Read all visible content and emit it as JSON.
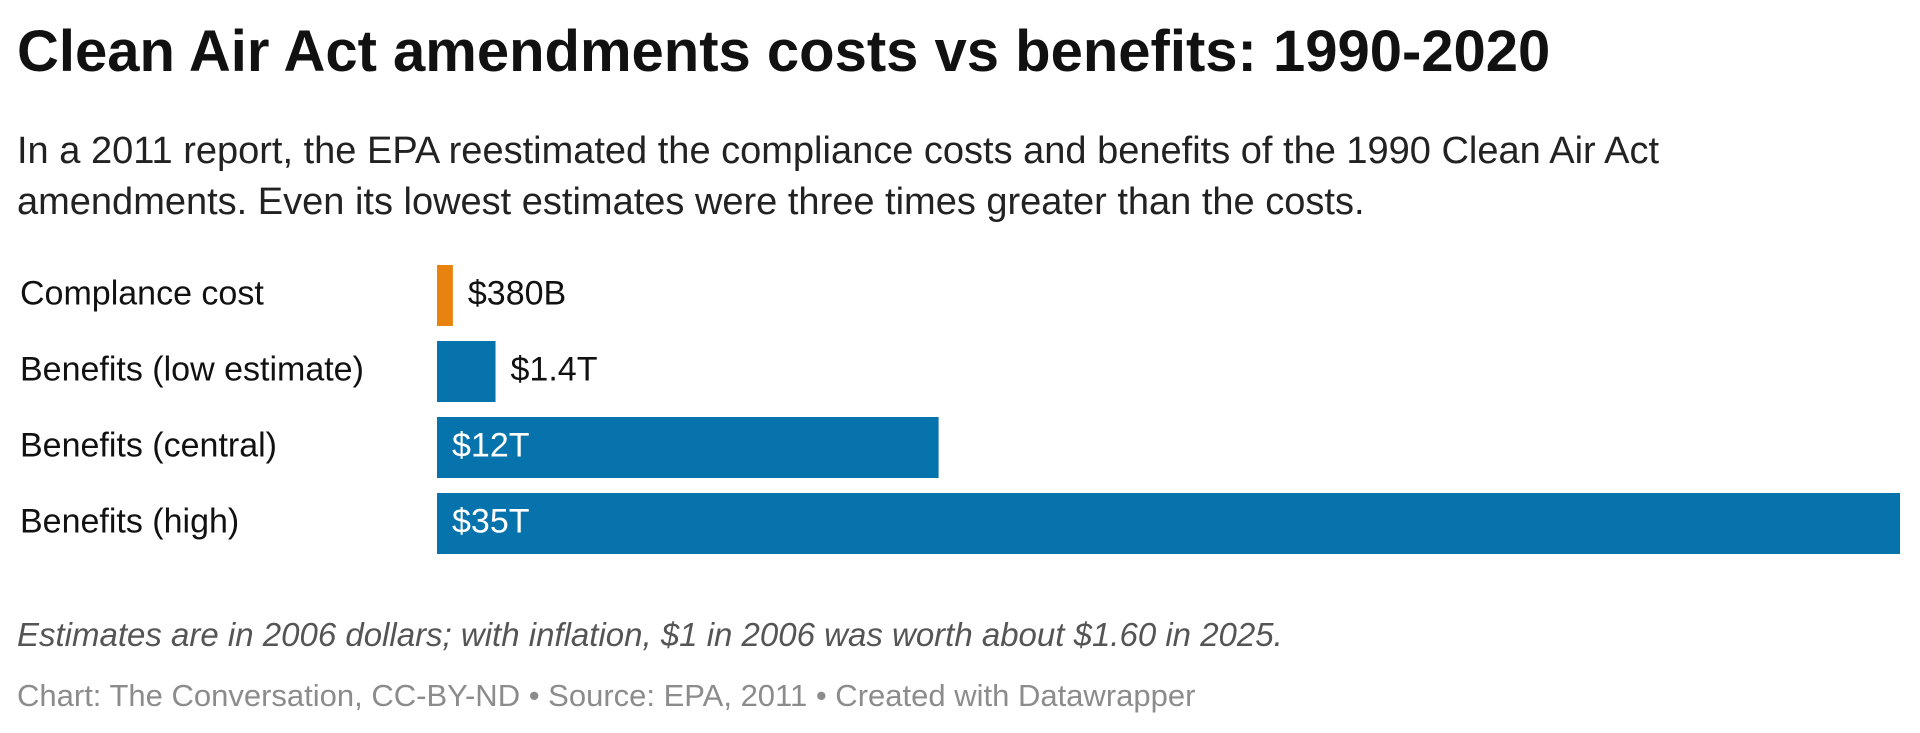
{
  "chart_data": {
    "type": "bar",
    "orientation": "horizontal",
    "title": "Clean Air Act amendments costs vs benefits: 1990-2020",
    "subtitle": "In a 2011 report, the EPA reestimated the compliance costs and benefits of the 1990 Clean Air Act amendments. Even its lowest estimates were three times greater than the costs.",
    "categories": [
      "Complance cost",
      "Benefits (low estimate)",
      "Benefits (central)",
      "Benefits (high)"
    ],
    "values": [
      380,
      1400,
      12000,
      35000
    ],
    "value_labels": [
      "$380B",
      "$1.4T",
      "$12T",
      "$35T"
    ],
    "colors": [
      "#e8830f",
      "#0773ad",
      "#0773ad",
      "#0773ad"
    ],
    "note": "Estimates are in 2006 dollars; with inflation, $1 in 2006 was worth about $1.60 in 2025.",
    "credit": "Chart: The Conversation, CC-BY-ND • Source: EPA, 2011 • Created with Datawrapper"
  }
}
